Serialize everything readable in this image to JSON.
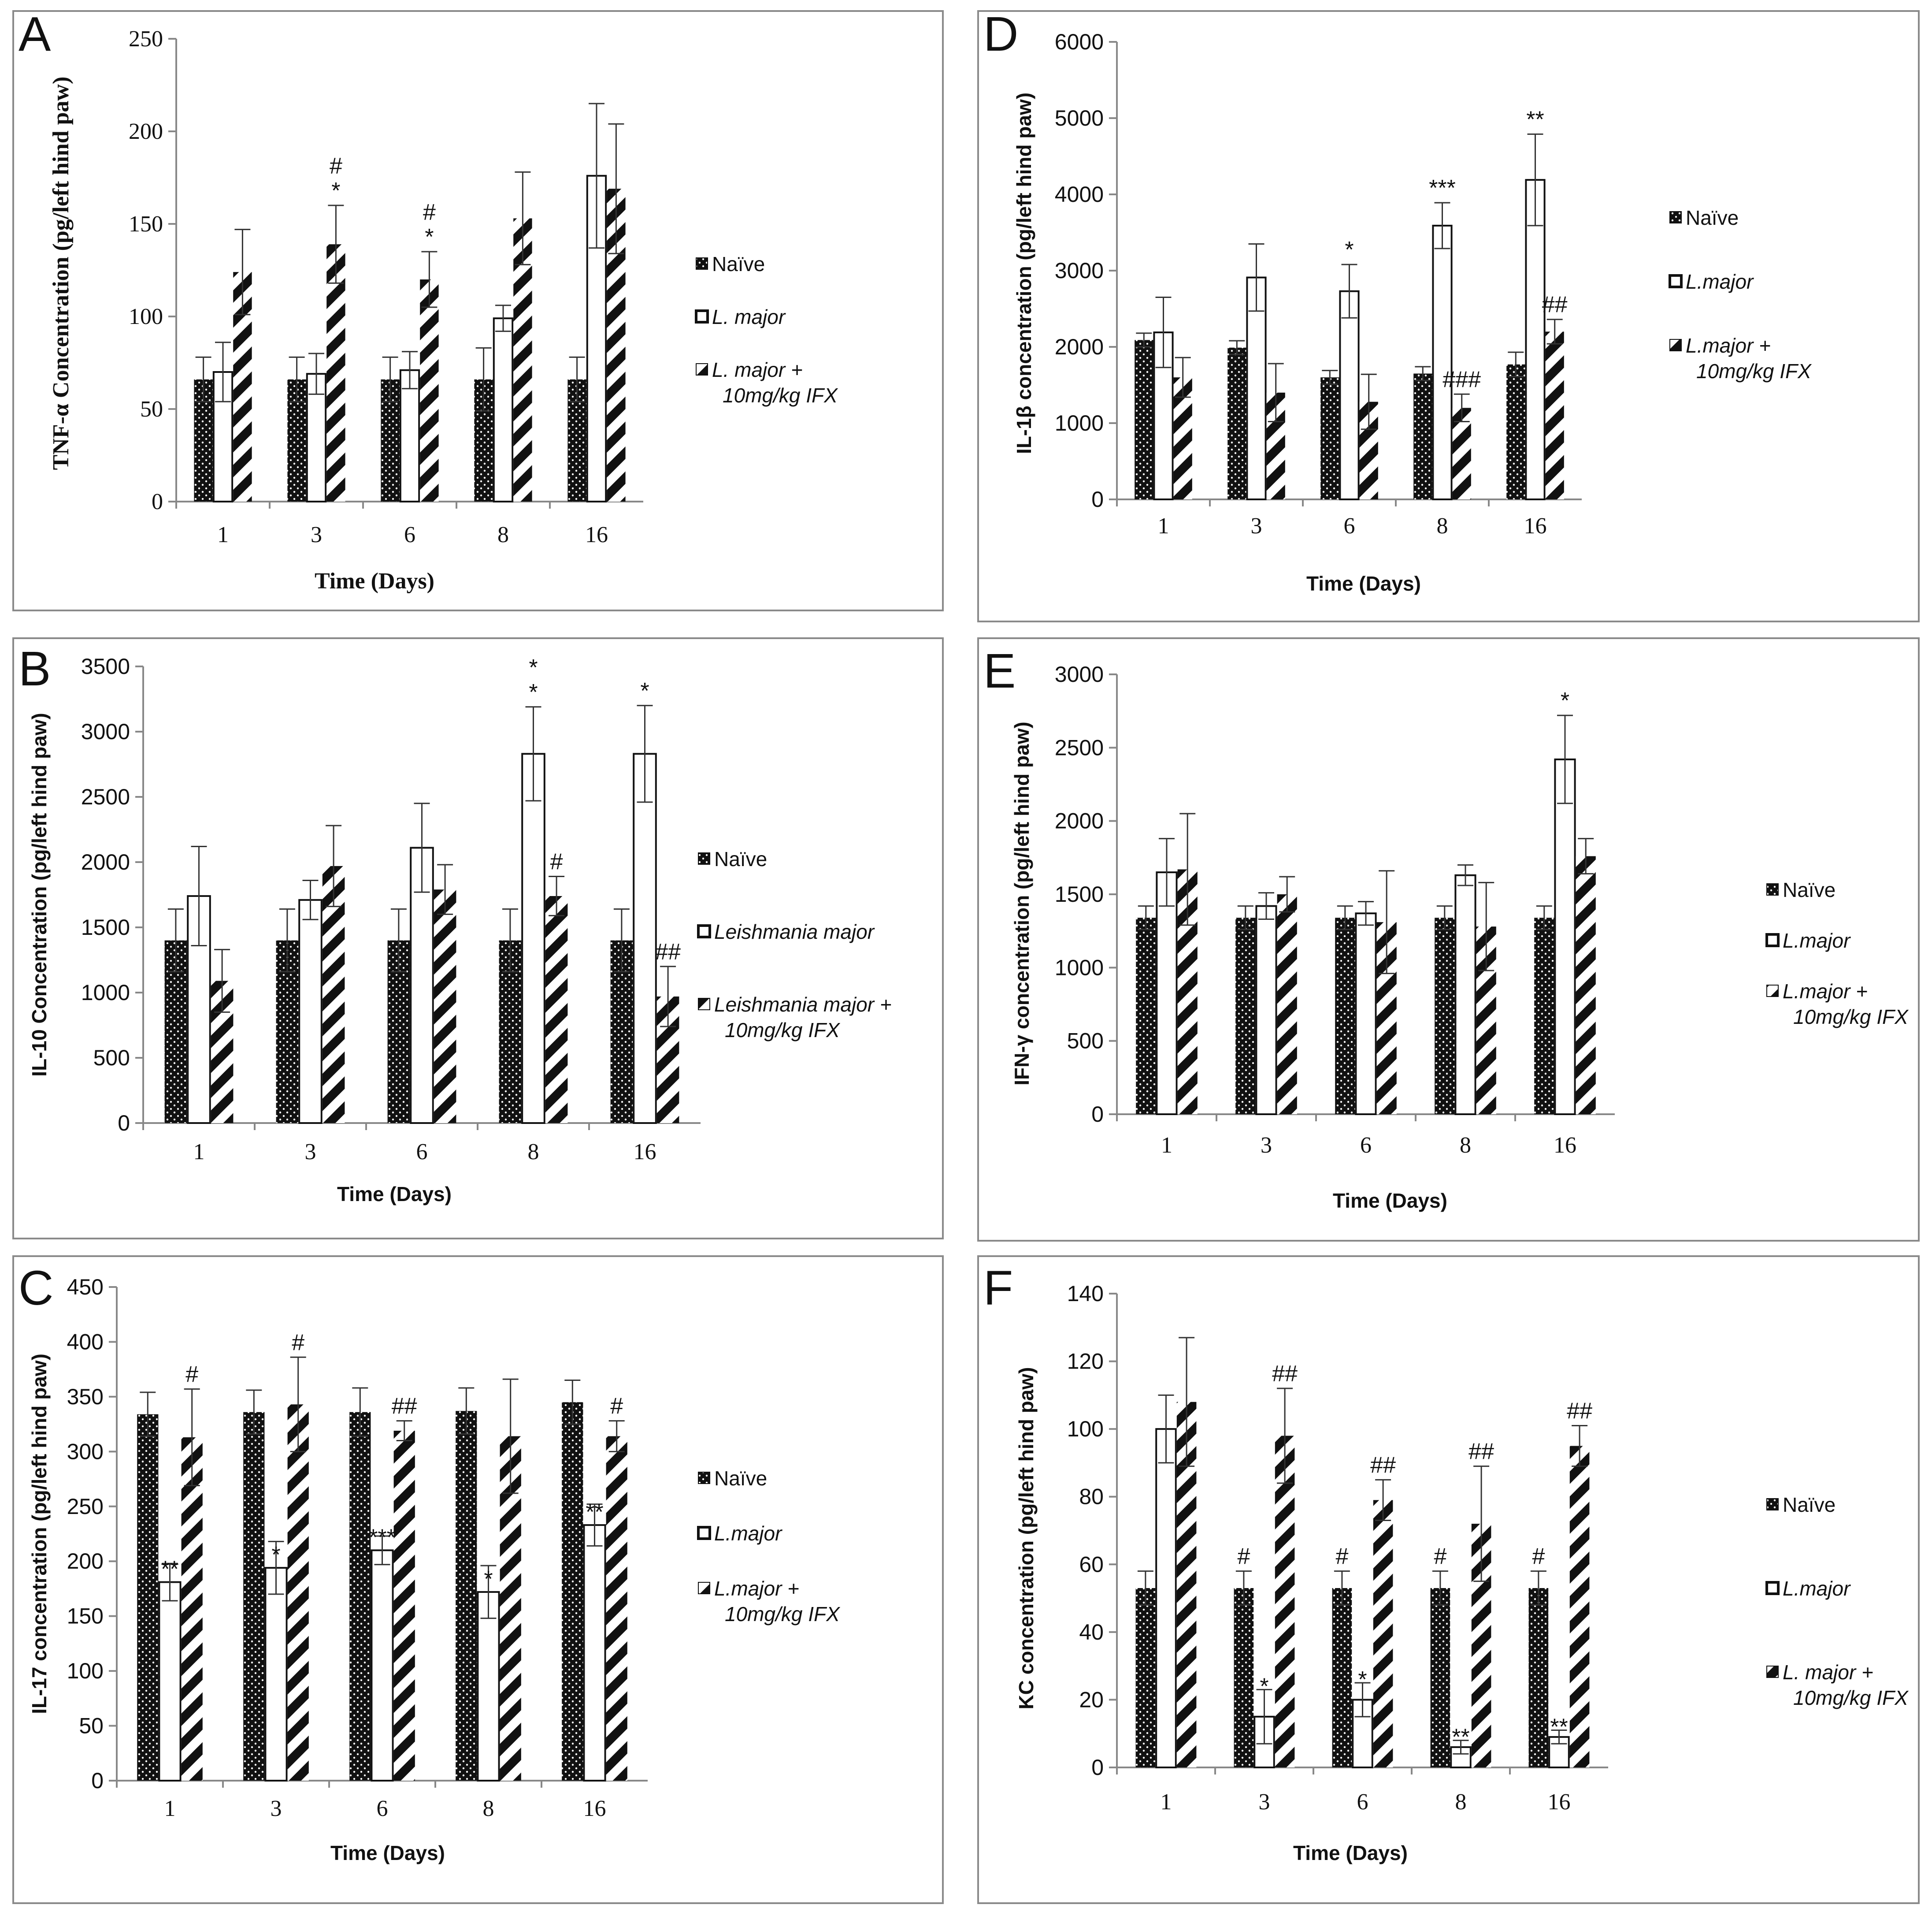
{
  "colors": {
    "naive": "#111111",
    "lmajor": "#ffffff",
    "ifx": "#111111",
    "frame": "#8a8a8a"
  },
  "chart_data": [
    {
      "type": "bar",
      "panel": "A",
      "categories": [
        "1",
        "3",
        "6",
        "8",
        "16"
      ],
      "xlabel": "Time  (Days)",
      "ylabel": "TNF-α Concentration (pg/left hind paw)",
      "ylim": [
        0,
        250
      ],
      "yticks": [
        "0",
        "50",
        "100",
        "150",
        "200",
        "250"
      ],
      "grid": false,
      "legend_position": "right",
      "legend": [
        "Naïve",
        "L. major",
        "L. major +",
        "10mg/kg IFX"
      ],
      "series": [
        {
          "values": [
            66,
            66,
            66,
            66,
            66
          ],
          "errors": [
            12,
            12,
            12,
            17,
            12
          ]
        },
        {
          "values": [
            70,
            69,
            71,
            99,
            176
          ],
          "errors": [
            16,
            11,
            10,
            7,
            39
          ]
        },
        {
          "values": [
            124,
            139,
            120,
            153,
            169
          ],
          "errors": [
            23,
            21,
            15,
            25,
            35
          ]
        }
      ],
      "annotations": [
        {
          "category": "3",
          "series": 2,
          "text": [
            "#",
            "*"
          ]
        },
        {
          "category": "6",
          "series": 2,
          "text": [
            "#",
            "*"
          ]
        }
      ]
    },
    {
      "type": "bar",
      "panel": "B",
      "categories": [
        "1",
        "3",
        "6",
        "8",
        "16"
      ],
      "xlabel": "Time (Days)",
      "ylabel": "IL-10 Concentration (pg/left hind paw)",
      "ylim": [
        0,
        3500
      ],
      "yticks": [
        "0",
        "500",
        "1000",
        "1500",
        "2000",
        "2500",
        "3000",
        "3500"
      ],
      "grid": false,
      "legend_position": "right",
      "legend": [
        "Naïve",
        "Leishmania major",
        "Leishmania major +",
        "10mg/kg IFX"
      ],
      "series": [
        {
          "values": [
            1400,
            1400,
            1400,
            1400,
            1400
          ],
          "errors": [
            240,
            240,
            240,
            240,
            240
          ]
        },
        {
          "values": [
            1740,
            1710,
            2110,
            2830,
            2830
          ],
          "errors": [
            380,
            150,
            340,
            360,
            370
          ]
        },
        {
          "values": [
            1090,
            1970,
            1790,
            1740,
            970
          ],
          "errors": [
            240,
            310,
            190,
            150,
            230
          ]
        }
      ],
      "annotations": [
        {
          "category": "8",
          "series": 1,
          "text": [
            "*",
            "*"
          ]
        },
        {
          "category": "16",
          "series": 1,
          "text": [
            "*"
          ]
        },
        {
          "category": "8",
          "series": 2,
          "text": [
            "#"
          ]
        },
        {
          "category": "16",
          "series": 2,
          "text": [
            "##"
          ]
        }
      ]
    },
    {
      "type": "bar",
      "panel": "C",
      "categories": [
        "1",
        "3",
        "6",
        "8",
        "16"
      ],
      "xlabel": "Time (Days)",
      "ylabel": "IL-17 concentration (pg/left hind paw)",
      "ylim": [
        0,
        450
      ],
      "yticks": [
        "0",
        "50",
        "100",
        "150",
        "200",
        "250",
        "300",
        "350",
        "400",
        "450"
      ],
      "grid": false,
      "legend_position": "right",
      "legend": [
        "Naïve",
        "L.major",
        "L.major +",
        "10mg/kg IFX"
      ],
      "series": [
        {
          "values": [
            334,
            336,
            336,
            337,
            345
          ],
          "errors": [
            20,
            20,
            22,
            21,
            20
          ]
        },
        {
          "values": [
            181,
            194,
            210,
            172,
            233
          ],
          "errors": [
            17,
            24,
            13,
            24,
            19
          ]
        },
        {
          "values": [
            313,
            343,
            319,
            314,
            314
          ],
          "errors": [
            44,
            43,
            9,
            52,
            14
          ]
        }
      ],
      "annotations": [
        {
          "category": "1",
          "series": 1,
          "text": [
            "**"
          ]
        },
        {
          "category": "3",
          "series": 1,
          "text": [
            "*"
          ]
        },
        {
          "category": "6",
          "series": 1,
          "text": [
            "***"
          ]
        },
        {
          "category": "8",
          "series": 1,
          "text": [
            "*"
          ]
        },
        {
          "category": "16",
          "series": 1,
          "text": [
            "**"
          ]
        },
        {
          "category": "1",
          "series": 2,
          "text": [
            "#"
          ]
        },
        {
          "category": "3",
          "series": 2,
          "text": [
            "#"
          ]
        },
        {
          "category": "6",
          "series": 2,
          "text": [
            "##"
          ]
        },
        {
          "category": "16",
          "series": 2,
          "text": [
            "#"
          ]
        }
      ]
    },
    {
      "type": "bar",
      "panel": "D",
      "categories": [
        "1",
        "3",
        "6",
        "8",
        "16"
      ],
      "xlabel": "Time (Days)",
      "ylabel": "IL-1β concentration (pg/left  hind paw)",
      "ylim": [
        0,
        6000
      ],
      "yticks": [
        "0",
        "1000",
        "2000",
        "3000",
        "4000",
        "5000",
        "6000"
      ],
      "grid": false,
      "legend_position": "right",
      "legend": [
        "Naïve",
        "L.major",
        "L.major +",
        "10mg/kg IFX"
      ],
      "series": [
        {
          "values": [
            2090,
            1990,
            1600,
            1650,
            1770
          ],
          "errors": [
            90,
            90,
            90,
            90,
            160
          ]
        },
        {
          "values": [
            2190,
            2910,
            2730,
            3590,
            4190
          ],
          "errors": [
            460,
            440,
            350,
            300,
            600
          ]
        },
        {
          "values": [
            1600,
            1400,
            1280,
            1200,
            2200
          ],
          "errors": [
            260,
            380,
            360,
            180,
            160
          ]
        }
      ],
      "annotations": [
        {
          "category": "6",
          "series": 1,
          "text": [
            "*"
          ]
        },
        {
          "category": "8",
          "series": 1,
          "text": [
            "***"
          ]
        },
        {
          "category": "16",
          "series": 1,
          "text": [
            "**"
          ]
        },
        {
          "category": "8",
          "series": 2,
          "text": [
            "###"
          ]
        },
        {
          "category": "16",
          "series": 2,
          "text": [
            "##"
          ]
        }
      ]
    },
    {
      "type": "bar",
      "panel": "E",
      "categories": [
        "1",
        "3",
        "6",
        "8",
        "16"
      ],
      "xlabel": "Time (Days)",
      "ylabel": "IFN-γ concentration (pg/left hind paw)",
      "ylim": [
        0,
        3000
      ],
      "yticks": [
        "0",
        "500",
        "1000",
        "1500",
        "2000",
        "2500",
        "3000"
      ],
      "grid": false,
      "legend_position": "right",
      "legend": [
        "Naïve",
        "L.major",
        "L.major +",
        "10mg/kg IFX"
      ],
      "series": [
        {
          "values": [
            1340,
            1340,
            1340,
            1340,
            1340
          ],
          "errors": [
            80,
            80,
            80,
            80,
            80
          ]
        },
        {
          "values": [
            1650,
            1420,
            1370,
            1630,
            2420
          ],
          "errors": [
            230,
            90,
            80,
            70,
            300
          ]
        },
        {
          "values": [
            1670,
            1500,
            1310,
            1280,
            1760
          ],
          "errors": [
            380,
            120,
            350,
            300,
            120
          ]
        }
      ],
      "annotations": [
        {
          "category": "16",
          "series": 1,
          "text": [
            "*"
          ]
        }
      ]
    },
    {
      "type": "bar",
      "panel": "F",
      "categories": [
        "1",
        "3",
        "6",
        "8",
        "16"
      ],
      "xlabel": "Time (Days)",
      "ylabel": "KC concentration (pg/left hind paw)",
      "ylim": [
        0,
        140
      ],
      "yticks": [
        "0",
        "20",
        "40",
        "60",
        "80",
        "100",
        "120",
        "140"
      ],
      "grid": false,
      "legend_position": "right",
      "legend": [
        "Naïve",
        "L.major",
        "L. major +",
        "10mg/kg IFX"
      ],
      "series": [
        {
          "values": [
            53,
            53,
            53,
            53,
            53
          ],
          "errors": [
            5,
            5,
            5,
            5,
            5
          ]
        },
        {
          "values": [
            100,
            15,
            20,
            6,
            9
          ],
          "errors": [
            10,
            8,
            5,
            2,
            2
          ]
        },
        {
          "values": [
            108,
            98,
            79,
            72,
            95
          ],
          "errors": [
            19,
            14,
            6,
            17,
            6
          ]
        }
      ],
      "annotations": [
        {
          "category": "3",
          "series": 1,
          "text": [
            "*"
          ]
        },
        {
          "category": "6",
          "series": 1,
          "text": [
            "*"
          ]
        },
        {
          "category": "8",
          "series": 1,
          "text": [
            "**"
          ]
        },
        {
          "category": "16",
          "series": 1,
          "text": [
            "**"
          ]
        },
        {
          "category": "3",
          "series": 0,
          "text": [
            "#"
          ]
        },
        {
          "category": "6",
          "series": 0,
          "text": [
            "#"
          ]
        },
        {
          "category": "8",
          "series": 0,
          "text": [
            "#"
          ]
        },
        {
          "category": "16",
          "series": 0,
          "text": [
            "#"
          ]
        },
        {
          "category": "3",
          "series": 2,
          "text": [
            "##"
          ]
        },
        {
          "category": "6",
          "series": 2,
          "text": [
            "##"
          ]
        },
        {
          "category": "8",
          "series": 2,
          "text": [
            "##"
          ]
        },
        {
          "category": "16",
          "series": 2,
          "text": [
            "##"
          ]
        }
      ]
    }
  ]
}
